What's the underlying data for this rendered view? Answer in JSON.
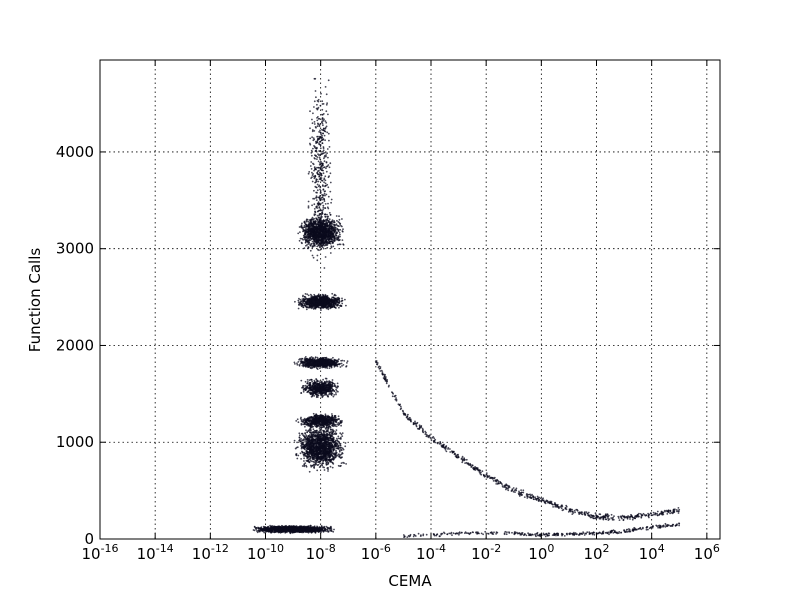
{
  "chart_data": {
    "type": "scatter",
    "title": "",
    "xlabel": "CEMA",
    "ylabel": "Function Calls",
    "x_scale": "log",
    "xlim": [
      1e-16,
      3000000.0
    ],
    "ylim": [
      0,
      4950
    ],
    "grid": true,
    "legend": "none",
    "marker_color": "#0b0b1e",
    "x_ticks": [
      {
        "base": "10",
        "exp": "-16",
        "value": 1e-16
      },
      {
        "base": "10",
        "exp": "-14",
        "value": 1e-14
      },
      {
        "base": "10",
        "exp": "-12",
        "value": 1e-12
      },
      {
        "base": "10",
        "exp": "-10",
        "value": 1e-10
      },
      {
        "base": "10",
        "exp": "-8",
        "value": 1e-08
      },
      {
        "base": "10",
        "exp": "-6",
        "value": 1e-06
      },
      {
        "base": "10",
        "exp": "-4",
        "value": 0.0001
      },
      {
        "base": "10",
        "exp": "-2",
        "value": 0.01
      },
      {
        "base": "10",
        "exp": "0",
        "value": 1
      },
      {
        "base": "10",
        "exp": "2",
        "value": 100
      },
      {
        "base": "10",
        "exp": "4",
        "value": 10000
      },
      {
        "base": "10",
        "exp": "6",
        "value": 1000000
      }
    ],
    "y_ticks": [
      {
        "label": "0",
        "value": 0
      },
      {
        "label": "1000",
        "value": 1000
      },
      {
        "label": "2000",
        "value": 2000
      },
      {
        "label": "3000",
        "value": 3000
      },
      {
        "label": "4000",
        "value": 4000
      }
    ],
    "series": [
      {
        "clusters": [
          {
            "x_center": 1e-09,
            "x_spread_decades": 1.6,
            "y_center": 100,
            "y_spread": 25,
            "count": 1800
          },
          {
            "x_center": 1e-08,
            "x_spread_decades": 1.0,
            "y_center": 950,
            "y_spread": 160,
            "count": 1500
          },
          {
            "x_center": 1e-08,
            "x_spread_decades": 0.9,
            "y_center": 1220,
            "y_spread": 50,
            "count": 700
          },
          {
            "x_center": 1e-08,
            "x_spread_decades": 0.8,
            "y_center": 1560,
            "y_spread": 70,
            "count": 600
          },
          {
            "x_center": 1e-08,
            "x_spread_decades": 1.0,
            "y_center": 1820,
            "y_spread": 40,
            "count": 800
          },
          {
            "x_center": 1e-08,
            "x_spread_decades": 1.0,
            "y_center": 2450,
            "y_spread": 55,
            "count": 900
          },
          {
            "x_center": 1e-08,
            "x_spread_decades": 0.9,
            "y_center": 3170,
            "y_spread": 120,
            "count": 1300
          },
          {
            "x_center": 1e-08,
            "x_spread_decades": 0.5,
            "y_center": 3800,
            "y_spread": 700,
            "count": 450
          }
        ],
        "trend": [
          [
            1e-06,
            1850
          ],
          [
            1e-05,
            1300
          ],
          [
            0.0001,
            1050
          ],
          [
            0.001,
            850
          ],
          [
            0.01,
            650
          ],
          [
            0.1,
            500
          ],
          [
            1,
            400
          ],
          [
            10,
            300
          ],
          [
            100,
            230
          ],
          [
            1000,
            220
          ],
          [
            10000,
            250
          ],
          [
            100000,
            300
          ]
        ],
        "floor": [
          [
            1e-05,
            30
          ],
          [
            0.001,
            60
          ],
          [
            0.1,
            60
          ],
          [
            1,
            40
          ],
          [
            10,
            50
          ],
          [
            100,
            60
          ],
          [
            1000,
            80
          ],
          [
            10000,
            120
          ],
          [
            100000,
            150
          ]
        ]
      }
    ]
  }
}
